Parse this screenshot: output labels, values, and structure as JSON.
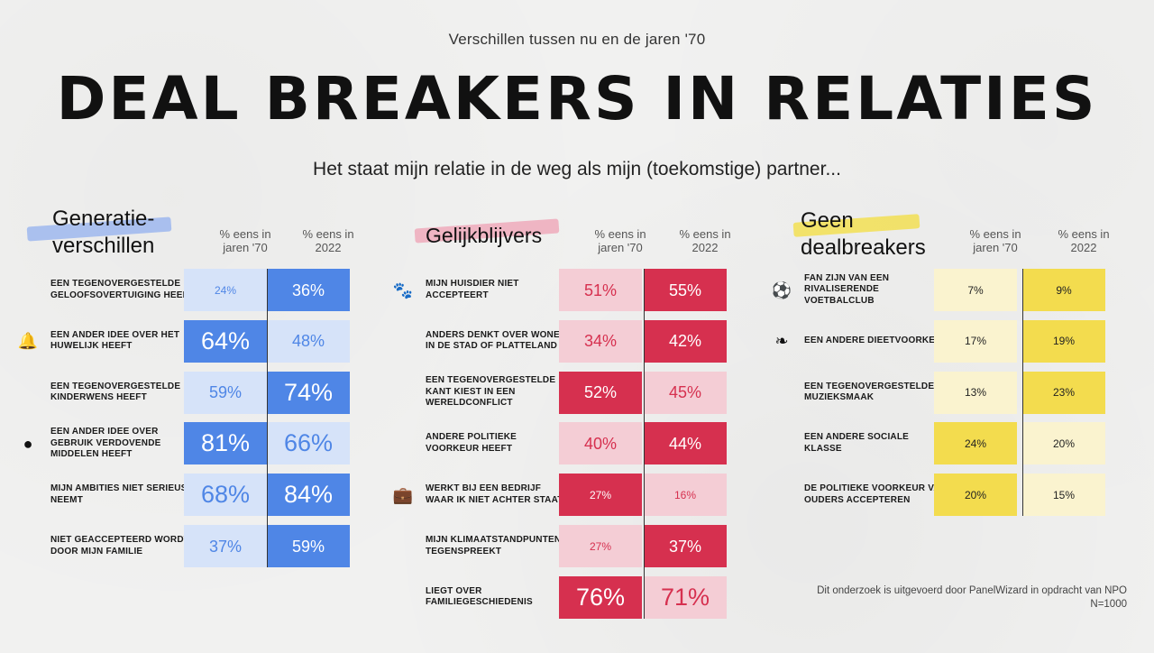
{
  "header": {
    "kicker": "Verschillen tussen nu en de jaren '70",
    "title": "DEAL BREAKERS IN RELATIES",
    "subtitle": "Het staat mijn relatie in de weg als mijn (toekomstige) partner..."
  },
  "footnote": {
    "line1": "Dit onderzoek is uitgevoerd door PanelWizard in opdracht van NPO",
    "line2": "N=1000"
  },
  "colors": {
    "blue_high": "#4f86e6",
    "blue_low": "#d6e3f9",
    "red_high": "#d6304f",
    "red_low": "#f4cdd5",
    "yellow_high": "#f3dc4e",
    "yellow_low": "#faf3cf"
  },
  "chart_data": [
    {
      "type": "table",
      "title": "Generatie-\nverschillen",
      "columns": [
        "% eens in\njaren '70",
        "% eens in\n2022"
      ],
      "color": "blue",
      "rows": [
        {
          "label": "EEN TEGENOVERGESTELDE GELOOFSOVERTUIGING HEEFT",
          "icon": "",
          "v70": 24,
          "v22": 36
        },
        {
          "label": "EEN ANDER IDEE OVER HET HUWELIJK HEEFT",
          "icon": "wedding-bells-icon",
          "v70": 64,
          "v22": 48
        },
        {
          "label": "EEN TEGENOVERGESTELDE KINDERWENS HEEFT",
          "icon": "",
          "v70": 59,
          "v22": 74
        },
        {
          "label": "EEN ANDER IDEE OVER GEBRUIK VERDOVENDE MIDDELEN HEEFT",
          "icon": "pills-icon",
          "v70": 81,
          "v22": 66
        },
        {
          "label": "MIJN AMBITIES NIET SERIEUS NEEMT",
          "icon": "",
          "v70": 68,
          "v22": 84
        },
        {
          "label": "NIET GEACCEPTEERD WORDT DOOR MIJN FAMILIE",
          "icon": "",
          "v70": 37,
          "v22": 59
        }
      ]
    },
    {
      "type": "table",
      "title": "Gelijkblijvers",
      "columns": [
        "% eens in\njaren '70",
        "% eens in\n2022"
      ],
      "color": "red",
      "rows": [
        {
          "label": "MIJN HUISDIER NIET ACCEPTEERT",
          "icon": "paw-icon",
          "v70": 51,
          "v22": 55
        },
        {
          "label": "ANDERS DENKT OVER WONEN IN DE STAD OF PLATTELAND",
          "icon": "",
          "v70": 34,
          "v22": 42
        },
        {
          "label": "EEN TEGENOVERGESTELDE KANT KIEST IN EEN WERELDCONFLICT",
          "icon": "",
          "v70": 52,
          "v22": 45
        },
        {
          "label": "ANDERE POLITIEKE VOORKEUR HEEFT",
          "icon": "",
          "v70": 40,
          "v22": 44
        },
        {
          "label": "WERKT BIJ EEN BEDRIJF WAAR IK NIET ACHTER STAAT",
          "icon": "briefcase-icon",
          "v70": 27,
          "v22": 16
        },
        {
          "label": "MIJN KLIMAATSTANDPUNTEN TEGENSPREEKT",
          "icon": "",
          "v70": 27,
          "v22": 37
        },
        {
          "label": "LIEGT OVER FAMILIEGESCHIEDENIS",
          "icon": "",
          "v70": 76,
          "v22": 71
        }
      ]
    },
    {
      "type": "table",
      "title": "Geen\ndealbreakers",
      "columns": [
        "% eens in\njaren '70",
        "% eens in\n2022"
      ],
      "color": "yellow",
      "rows": [
        {
          "label": "FAN ZIJN VAN EEN RIVALISERENDE VOETBALCLUB",
          "icon": "soccer-ball-icon",
          "v70": 7,
          "v22": 9
        },
        {
          "label": "EEN ANDERE DIEETVOORKEUR",
          "icon": "leaf-icon",
          "v70": 17,
          "v22": 19
        },
        {
          "label": "EEN TEGENOVERGESTELDE MUZIEKSMAAK",
          "icon": "",
          "v70": 13,
          "v22": 23
        },
        {
          "label": "EEN ANDERE SOCIALE KLASSE",
          "icon": "",
          "v70": 24,
          "v22": 20
        },
        {
          "label": "DE POLITIEKE VOORKEUR VAN OUDERS ACCEPTEREN",
          "icon": "",
          "v70": 20,
          "v22": 15
        }
      ]
    }
  ]
}
